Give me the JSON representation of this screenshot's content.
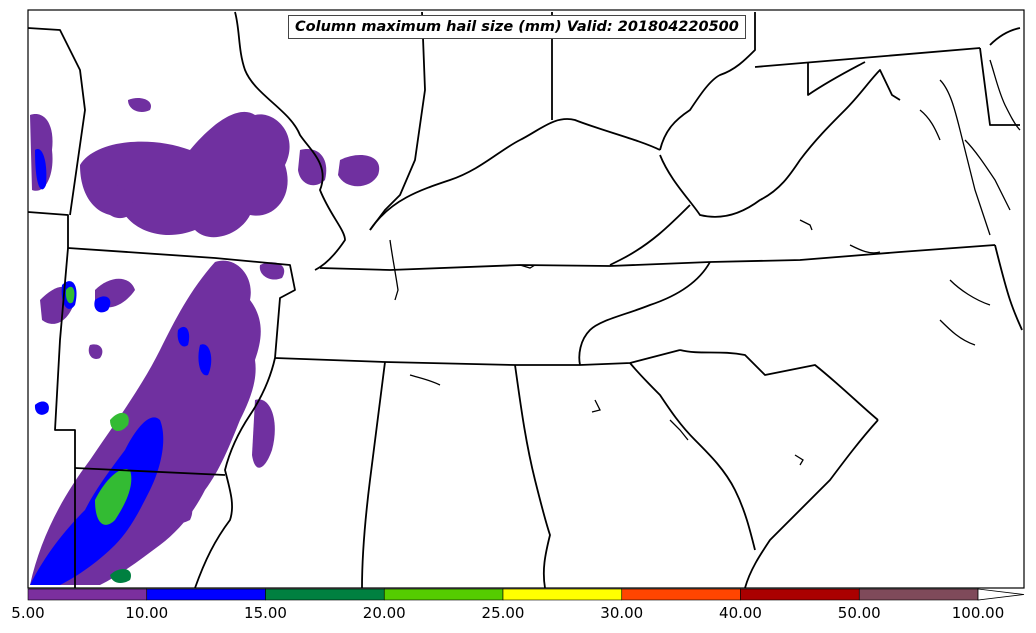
{
  "title": "Column maximum hail size (mm) Valid: 201804220500",
  "colorbar": {
    "ticks": [
      "5.00",
      "10.00",
      "15.00",
      "20.00",
      "25.00",
      "30.00",
      "40.00",
      "50.00",
      "100.00"
    ],
    "colors": [
      "#7b2f9e",
      "#0000ff",
      "#008040",
      "#55cc00",
      "#ffff00",
      "#ff4500",
      "#aa0000",
      "#7f4a5a"
    ],
    "extend": "max"
  },
  "map": {
    "background": "#ffffff",
    "border_color": "#000000",
    "hail_colors": {
      "5-10": "#7030a0",
      "10-15": "#0000ff",
      "15-20": "#008040",
      "20-25": "#33bb33"
    }
  }
}
